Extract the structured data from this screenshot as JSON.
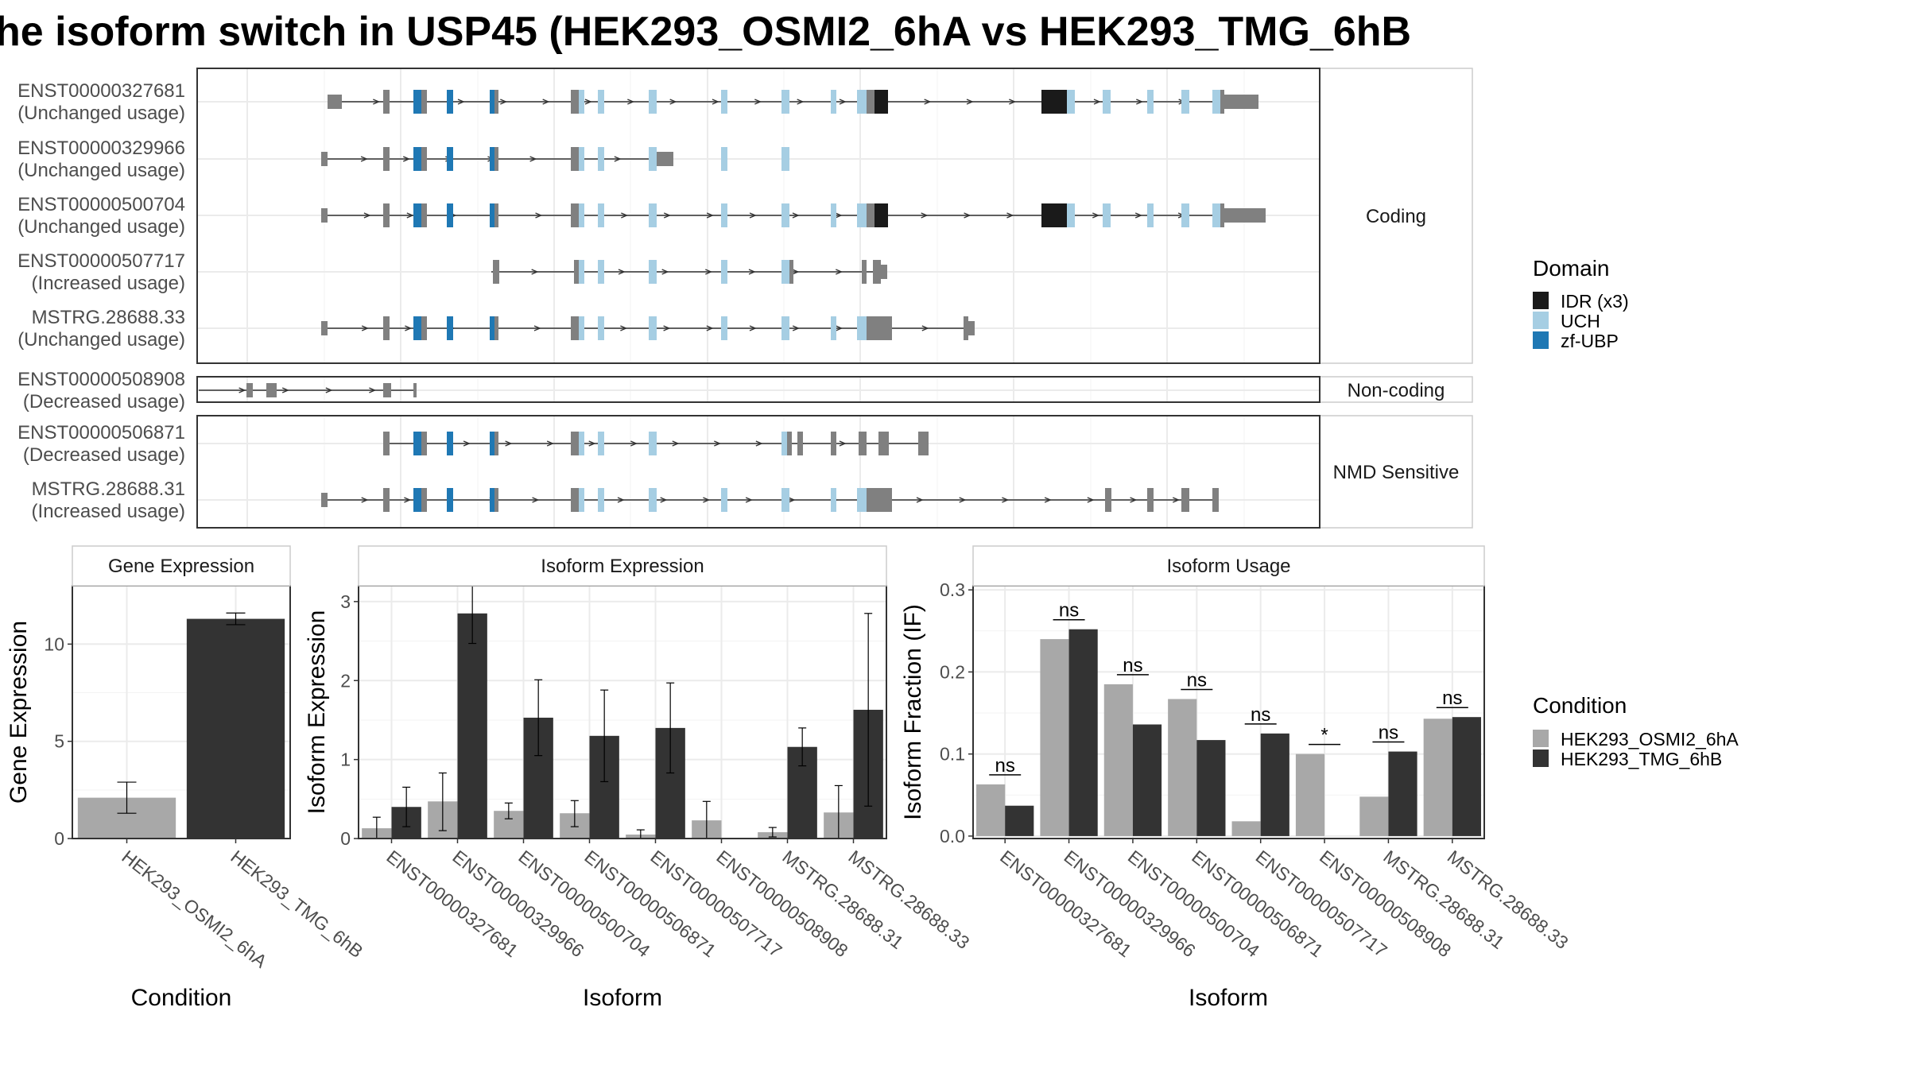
{
  "title": "he isoform switch in USP45 (HEK293_OSMI2_6hA vs HEK293_TMG_6hB",
  "colors": {
    "IDR": "#1a1a1a",
    "UCH": "#a6cee3",
    "zfUBP": "#1f78b4",
    "utr": "#808080",
    "OSMI": "#a8a8a8",
    "TMG": "#333333",
    "grid": "#ebebeb",
    "panel_border": "#333333"
  },
  "transcripts": {
    "panel_labels": {
      "coding": "Coding",
      "noncoding": "Non-coding",
      "nmd": "NMD Sensitive"
    },
    "rows": [
      {
        "id": "ENST00000327681",
        "usage": "(Unchanged usage)",
        "group": "coding"
      },
      {
        "id": "ENST00000329966",
        "usage": "(Unchanged usage)",
        "group": "coding"
      },
      {
        "id": "ENST00000500704",
        "usage": "(Unchanged usage)",
        "group": "coding"
      },
      {
        "id": "ENST00000507717",
        "usage": "(Increased usage)",
        "group": "coding"
      },
      {
        "id": "MSTRG.28688.33",
        "usage": "(Unchanged usage)",
        "group": "coding"
      },
      {
        "id": "ENST00000508908",
        "usage": "(Decreased usage)",
        "group": "noncoding"
      },
      {
        "id": "ENST00000506871",
        "usage": "(Decreased usage)",
        "group": "nmd"
      },
      {
        "id": "MSTRG.28688.31",
        "usage": "(Increased usage)",
        "group": "nmd"
      }
    ]
  },
  "legends": {
    "domain": {
      "title": "Domain",
      "items": [
        {
          "label": "IDR (x3)",
          "color": "#1a1a1a"
        },
        {
          "label": "UCH",
          "color": "#a6cee3"
        },
        {
          "label": "zf-UBP",
          "color": "#1f78b4"
        }
      ]
    },
    "condition": {
      "title": "Condition",
      "items": [
        {
          "label": "HEK293_OSMI2_6hA",
          "color": "#a8a8a8"
        },
        {
          "label": "HEK293_TMG_6hB",
          "color": "#333333"
        }
      ]
    }
  },
  "chart_data": [
    {
      "type": "bar",
      "title": "Gene Expression",
      "xlabel": "Condition",
      "ylabel": "Gene Expression",
      "ylim": [
        0,
        13
      ],
      "yticks": [
        0,
        5,
        10
      ],
      "categories": [
        "HEK293_OSMI2_6hA",
        "HEK293_TMG_6hB"
      ],
      "values": [
        2.1,
        11.3
      ],
      "errors": [
        [
          1.3,
          2.9
        ],
        [
          11.0,
          11.6
        ]
      ]
    },
    {
      "type": "bar",
      "title": "Isoform Expression",
      "xlabel": "Isoform",
      "ylabel": "Isoform Expression",
      "ylim": [
        0,
        3.2
      ],
      "yticks": [
        0,
        1,
        2,
        3
      ],
      "categories": [
        "ENST00000327681",
        "ENST00000329966",
        "ENST00000500704",
        "ENST00000506871",
        "ENST00000507717",
        "ENST00000508908",
        "MSTRG.28688.31",
        "MSTRG.28688.33"
      ],
      "series": [
        {
          "name": "HEK293_OSMI2_6hA",
          "values": [
            0.13,
            0.47,
            0.35,
            0.32,
            0.05,
            0.23,
            0.08,
            0.33
          ],
          "errors": [
            [
              0.0,
              0.27
            ],
            [
              0.1,
              0.83
            ],
            [
              0.25,
              0.45
            ],
            [
              0.15,
              0.48
            ],
            [
              0.0,
              0.11
            ],
            [
              0.0,
              0.47
            ],
            [
              0.02,
              0.14
            ],
            [
              0.0,
              0.67
            ]
          ]
        },
        {
          "name": "HEK293_TMG_6hB",
          "values": [
            0.4,
            2.85,
            1.53,
            1.3,
            1.4,
            0.0,
            1.16,
            1.63
          ],
          "errors": [
            [
              0.15,
              0.65
            ],
            [
              2.47,
              3.23
            ],
            [
              1.05,
              2.01
            ],
            [
              0.72,
              1.88
            ],
            [
              0.83,
              1.97
            ],
            [
              0.0,
              0.0
            ],
            [
              0.92,
              1.4
            ],
            [
              0.41,
              2.85
            ]
          ]
        }
      ]
    },
    {
      "type": "bar",
      "title": "Isoform Usage",
      "xlabel": "Isoform",
      "ylabel": "Isoform Fraction (IF)",
      "ylim": [
        -0.003,
        0.305
      ],
      "yticks": [
        0.0,
        0.1,
        0.2,
        0.3
      ],
      "ytick_labels": [
        "0.0",
        "0.1",
        "0.2",
        "0.3"
      ],
      "categories": [
        "ENST00000327681",
        "ENST00000329966",
        "ENST00000500704",
        "ENST00000506871",
        "ENST00000507717",
        "ENST00000508908",
        "MSTRG.28688.31",
        "MSTRG.28688.33"
      ],
      "series": [
        {
          "name": "HEK293_OSMI2_6hA",
          "values": [
            0.063,
            0.24,
            0.185,
            0.167,
            0.018,
            0.1,
            0.048,
            0.143
          ]
        },
        {
          "name": "HEK293_TMG_6hB",
          "values": [
            0.037,
            0.252,
            0.136,
            0.117,
            0.125,
            0.0,
            0.103,
            0.145
          ]
        }
      ],
      "significance": [
        "ns",
        "ns",
        "ns",
        "ns",
        "ns",
        "*",
        "ns",
        "ns"
      ]
    }
  ]
}
